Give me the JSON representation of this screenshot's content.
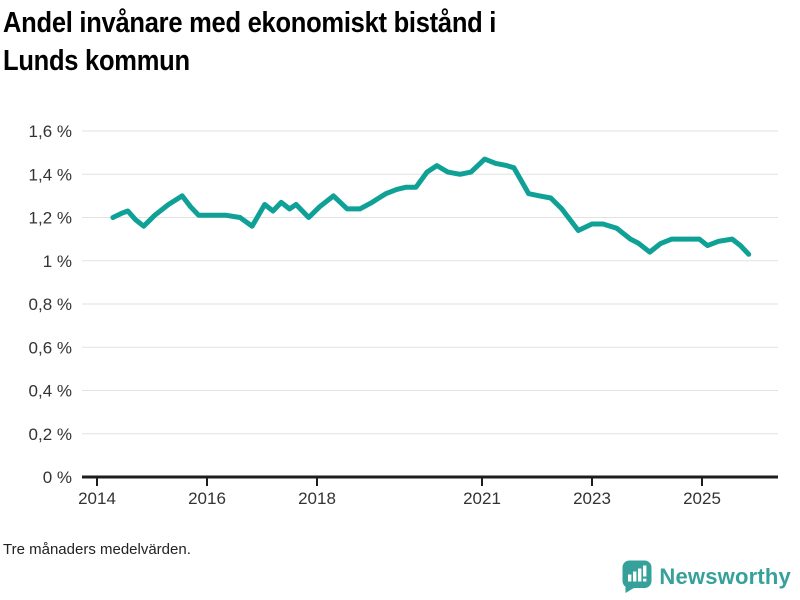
{
  "title": {
    "text": "Andel invånare med ekonomiskt bistånd i Lunds kommun",
    "lines": [
      "Andel invånare med ekonomiskt bistånd i",
      "Lunds kommun"
    ]
  },
  "footnote": "Tre månaders medelvärden.",
  "brand": {
    "name": "Newsworthy",
    "icon": "bar-chart-speech-bubble-icon",
    "color": "#35a19a"
  },
  "colors": {
    "line": "#0fa096",
    "grid": "#e2e2e2",
    "axis": "#1d1d1d",
    "tick_label": "#333333"
  },
  "chart_data": {
    "type": "line",
    "title": "Andel invånare med ekonomiskt bistånd i Lunds kommun",
    "xlabel": "",
    "ylabel": "",
    "unit": "%",
    "grid": "horizontal",
    "legend_position": "none",
    "xlim": [
      2013.73,
      2026.4
    ],
    "ylim": [
      0,
      1.6
    ],
    "x_ticks": [
      {
        "v": 2014,
        "label": "2014"
      },
      {
        "v": 2016,
        "label": "2016"
      },
      {
        "v": 2018,
        "label": "2018"
      },
      {
        "v": 2021,
        "label": "2021"
      },
      {
        "v": 2023,
        "label": "2023"
      },
      {
        "v": 2025,
        "label": "2025"
      }
    ],
    "y_ticks": [
      {
        "v": 0,
        "label": "0 %"
      },
      {
        "v": 0.2,
        "label": "0,2 %"
      },
      {
        "v": 0.4,
        "label": "0,4 %"
      },
      {
        "v": 0.6,
        "label": "0,6 %"
      },
      {
        "v": 0.8,
        "label": "0,8 %"
      },
      {
        "v": 1.0,
        "label": "1 %"
      },
      {
        "v": 1.2,
        "label": "1,2 %"
      },
      {
        "v": 1.4,
        "label": "1,4 %"
      },
      {
        "v": 1.6,
        "label": "1,6 %"
      }
    ],
    "series": [
      {
        "name": "Andel invånare med ekonomiskt bistånd, Lunds kommun",
        "color": "#0fa096",
        "points": [
          [
            2014.29,
            1.2
          ],
          [
            2014.45,
            1.22
          ],
          [
            2014.56,
            1.23
          ],
          [
            2014.7,
            1.19
          ],
          [
            2014.85,
            1.16
          ],
          [
            2015.05,
            1.21
          ],
          [
            2015.3,
            1.26
          ],
          [
            2015.55,
            1.3
          ],
          [
            2015.7,
            1.25
          ],
          [
            2015.85,
            1.21
          ],
          [
            2016.05,
            1.21
          ],
          [
            2016.35,
            1.21
          ],
          [
            2016.6,
            1.2
          ],
          [
            2016.82,
            1.16
          ],
          [
            2017.05,
            1.26
          ],
          [
            2017.2,
            1.23
          ],
          [
            2017.35,
            1.27
          ],
          [
            2017.5,
            1.24
          ],
          [
            2017.62,
            1.26
          ],
          [
            2017.85,
            1.2
          ],
          [
            2018.05,
            1.25
          ],
          [
            2018.3,
            1.3
          ],
          [
            2018.55,
            1.24
          ],
          [
            2018.78,
            1.24
          ],
          [
            2019.0,
            1.27
          ],
          [
            2019.25,
            1.31
          ],
          [
            2019.45,
            1.33
          ],
          [
            2019.62,
            1.34
          ],
          [
            2019.8,
            1.34
          ],
          [
            2020.0,
            1.41
          ],
          [
            2020.18,
            1.44
          ],
          [
            2020.38,
            1.41
          ],
          [
            2020.6,
            1.4
          ],
          [
            2020.8,
            1.41
          ],
          [
            2021.05,
            1.47
          ],
          [
            2021.25,
            1.45
          ],
          [
            2021.45,
            1.44
          ],
          [
            2021.58,
            1.43
          ],
          [
            2021.85,
            1.31
          ],
          [
            2022.05,
            1.3
          ],
          [
            2022.25,
            1.29
          ],
          [
            2022.45,
            1.24
          ],
          [
            2022.75,
            1.14
          ],
          [
            2023.0,
            1.17
          ],
          [
            2023.2,
            1.17
          ],
          [
            2023.45,
            1.15
          ],
          [
            2023.7,
            1.1
          ],
          [
            2023.85,
            1.08
          ],
          [
            2024.05,
            1.04
          ],
          [
            2024.25,
            1.08
          ],
          [
            2024.45,
            1.1
          ],
          [
            2024.7,
            1.1
          ],
          [
            2024.95,
            1.1
          ],
          [
            2025.1,
            1.07
          ],
          [
            2025.3,
            1.09
          ],
          [
            2025.55,
            1.1
          ],
          [
            2025.7,
            1.07
          ],
          [
            2025.85,
            1.03
          ]
        ]
      }
    ]
  }
}
